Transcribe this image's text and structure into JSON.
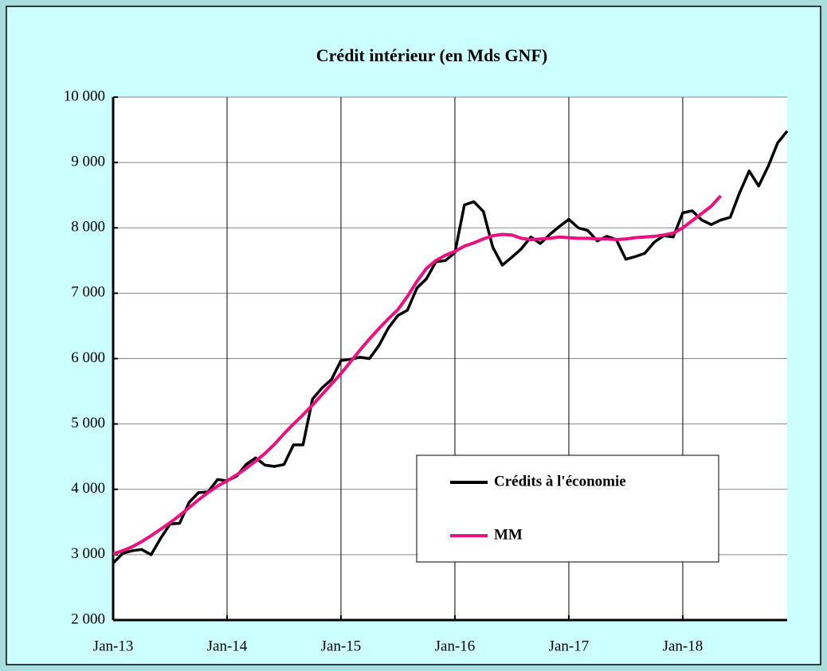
{
  "chart_data": {
    "type": "line",
    "title": "Crédit intérieur (en Mds GNF)",
    "categories": [
      "Jan-13",
      null,
      null,
      null,
      null,
      null,
      null,
      null,
      null,
      null,
      null,
      null,
      "Jan-14",
      null,
      null,
      null,
      null,
      null,
      null,
      null,
      null,
      null,
      null,
      null,
      "Jan-15",
      null,
      null,
      null,
      null,
      null,
      null,
      null,
      null,
      null,
      null,
      null,
      "Jan-16",
      null,
      null,
      null,
      null,
      null,
      null,
      null,
      null,
      null,
      null,
      null,
      "Jan-17",
      null,
      null,
      null,
      null,
      null,
      null,
      null,
      null,
      null,
      null,
      null,
      "Jan-18",
      null,
      null,
      null,
      null,
      null,
      null,
      null,
      null,
      null,
      null,
      null
    ],
    "series": [
      {
        "name": "Crédits à l'économie",
        "color": "#000000",
        "values": [
          2870,
          3020,
          3060,
          3080,
          3000,
          3250,
          3470,
          3480,
          3800,
          3950,
          3960,
          4150,
          4130,
          4200,
          4380,
          4480,
          4370,
          4350,
          4380,
          4680,
          4680,
          5380,
          5550,
          5680,
          5970,
          5990,
          6020,
          6000,
          6200,
          6470,
          6660,
          6740,
          7080,
          7220,
          7480,
          7500,
          7620,
          8350,
          8400,
          8250,
          7700,
          7430,
          7550,
          7680,
          7860,
          7760,
          7900,
          8020,
          8130,
          8000,
          7960,
          7800,
          7870,
          7820,
          7520,
          7560,
          7610,
          7780,
          7880,
          7860,
          8230,
          8260,
          8120,
          8050,
          8120,
          8160,
          8540,
          8870,
          8640,
          8940,
          9300,
          9480
        ]
      },
      {
        "name": "MM",
        "color": "#e8117f",
        "values": [
          3010,
          3060,
          3120,
          3200,
          3290,
          3390,
          3490,
          3600,
          3720,
          3840,
          3950,
          4050,
          4130,
          4220,
          4320,
          4430,
          4550,
          4690,
          4850,
          5000,
          5140,
          5290,
          5450,
          5610,
          5770,
          5950,
          6130,
          6300,
          6460,
          6610,
          6750,
          6950,
          7180,
          7380,
          7500,
          7580,
          7640,
          7720,
          7770,
          7830,
          7880,
          7900,
          7890,
          7840,
          7820,
          7830,
          7840,
          7860,
          7850,
          7840,
          7840,
          7830,
          7830,
          7820,
          7830,
          7850,
          7860,
          7870,
          7890,
          7920,
          8000,
          8110,
          8220,
          8330,
          8490,
          null,
          null,
          null,
          null,
          null,
          null,
          null
        ]
      }
    ],
    "ylim": [
      2000,
      10000
    ],
    "yticks": [
      {
        "value": 2000,
        "label": "2 000"
      },
      {
        "value": 3000,
        "label": "3 000"
      },
      {
        "value": 4000,
        "label": "4 000"
      },
      {
        "value": 5000,
        "label": "5 000"
      },
      {
        "value": 6000,
        "label": "6 000"
      },
      {
        "value": 7000,
        "label": "7 000"
      },
      {
        "value": 8000,
        "label": "8 000"
      },
      {
        "value": 9000,
        "label": "9 000"
      },
      {
        "value": 10000,
        "label": "10 000"
      }
    ],
    "grid": true
  }
}
